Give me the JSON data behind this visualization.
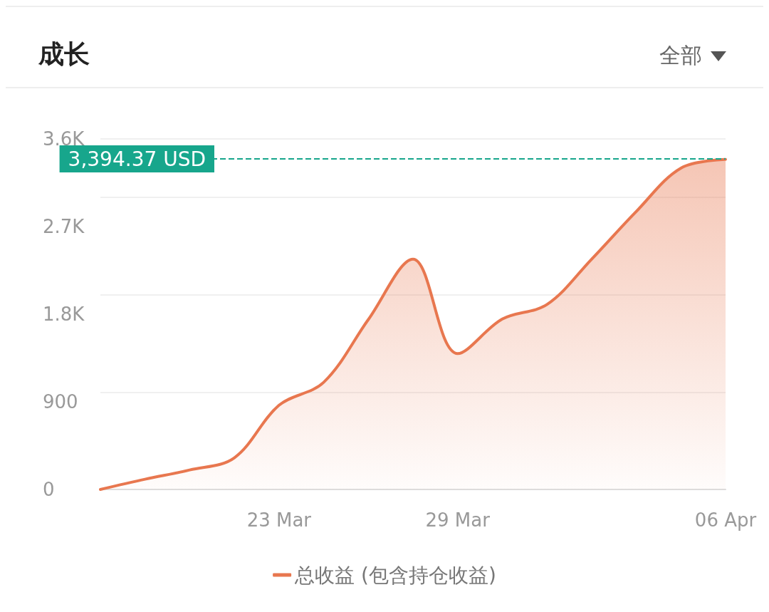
{
  "chart_data": {
    "type": "area",
    "title": "成长",
    "annotations": [
      "全部"
    ],
    "categories": [
      null,
      null,
      null,
      null,
      "23 Mar",
      null,
      null,
      null,
      "29 Mar",
      null,
      null,
      null,
      null,
      null,
      "06 Apr"
    ],
    "series": [
      {
        "name": "总收益 (包含持仓收益)",
        "color": "#e8774f",
        "values": [
          0,
          105,
          200,
          325,
          865,
          1100,
          1745,
          2365,
          1395,
          1750,
          1900,
          2365,
          2855,
          3300,
          3390
        ]
      }
    ],
    "ylim": [
      0,
      3600
    ],
    "yticks": [
      0,
      900,
      {
        "value": 1800,
        "label": "1.8K"
      },
      {
        "value": 2700,
        "label": "2.7K"
      },
      {
        "value": 3600,
        "label": "3.6K"
      }
    ],
    "ref_lines": [
      {
        "axis": "y",
        "value": 3394.37,
        "label": "3,394.37 USD",
        "color": "#17a68c",
        "line_style": "dashed"
      }
    ],
    "grid": "y",
    "legend": "bottom",
    "marker": "none",
    "line_style": "solid"
  }
}
